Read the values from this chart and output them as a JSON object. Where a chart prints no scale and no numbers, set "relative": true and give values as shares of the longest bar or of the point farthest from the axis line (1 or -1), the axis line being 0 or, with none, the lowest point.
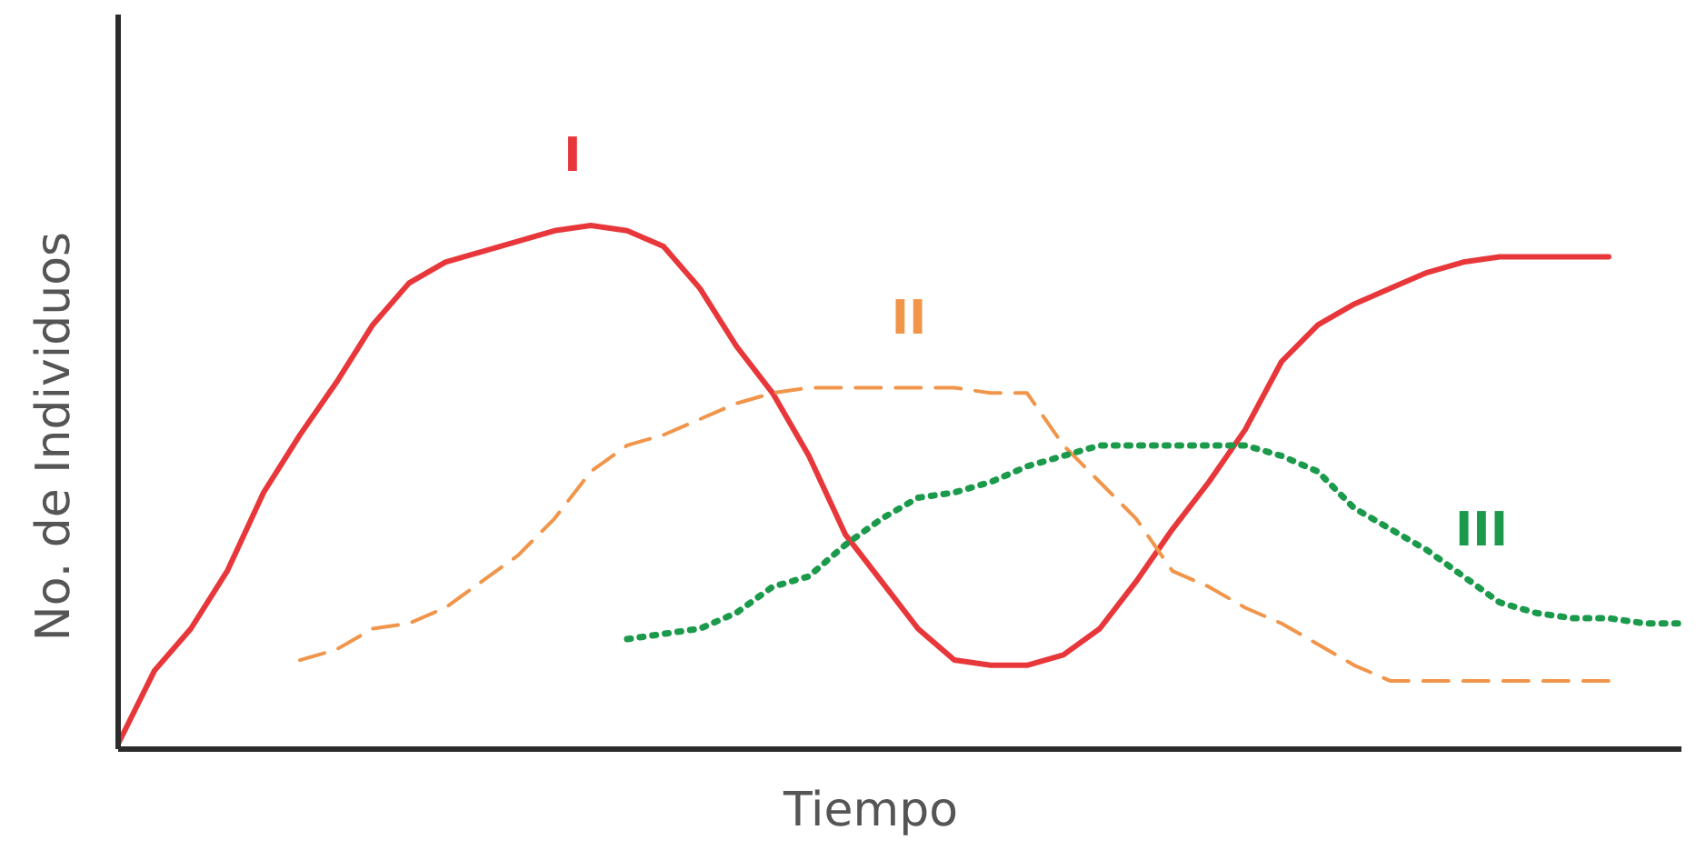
{
  "chart_data": {
    "type": "line",
    "relative": true,
    "xlabel": "Tiempo",
    "ylabel": "No. de Individuos",
    "legend": false,
    "marker": "none",
    "categories": [
      null,
      null,
      null,
      null,
      null,
      null,
      null,
      null,
      null,
      null,
      null,
      null,
      null,
      null,
      null,
      null,
      null,
      null,
      null,
      null,
      null,
      null,
      null,
      null,
      null,
      null,
      null,
      null,
      null,
      null,
      null,
      null,
      null,
      null,
      null,
      null,
      null,
      null,
      null,
      null,
      null,
      null,
      null,
      null
    ],
    "series": [
      {
        "name": "I",
        "color": "#e8373a",
        "line_style": "solid",
        "values": [
          0.01,
          0.15,
          0.23,
          0.34,
          0.49,
          0.6,
          0.7,
          0.81,
          0.89,
          0.93,
          0.95,
          0.97,
          0.99,
          1,
          0.99,
          0.96,
          0.88,
          0.77,
          0.68,
          0.56,
          0.41,
          0.32,
          0.23,
          0.17,
          0.16,
          0.16,
          0.18,
          0.23,
          0.32,
          0.42,
          0.51,
          0.61,
          0.74,
          0.81,
          0.85,
          0.88,
          0.91,
          0.93,
          0.94,
          0.94,
          0.94,
          0.94,
          null,
          null
        ]
      },
      {
        "name": "II",
        "color": "#f0954a",
        "line_style": "dashed",
        "values": [
          null,
          null,
          null,
          null,
          null,
          0.17,
          0.19,
          0.23,
          0.24,
          0.27,
          0.32,
          0.37,
          0.44,
          0.53,
          0.58,
          0.6,
          0.63,
          0.66,
          0.68,
          0.69,
          0.69,
          0.69,
          0.69,
          0.69,
          0.68,
          0.68,
          0.58,
          0.51,
          0.44,
          0.34,
          0.31,
          0.27,
          0.24,
          0.2,
          0.16,
          0.13,
          0.13,
          0.13,
          0.13,
          0.13,
          0.13,
          0.13,
          null,
          null
        ]
      },
      {
        "name": "III",
        "color": "#1a9a4a",
        "line_style": "dotted",
        "values": [
          null,
          null,
          null,
          null,
          null,
          null,
          null,
          null,
          null,
          null,
          null,
          null,
          null,
          null,
          0.21,
          0.22,
          0.23,
          0.26,
          0.31,
          0.33,
          0.39,
          0.44,
          0.48,
          0.49,
          0.51,
          0.54,
          0.56,
          0.58,
          0.58,
          0.58,
          0.58,
          0.58,
          0.56,
          0.53,
          0.46,
          0.42,
          0.38,
          0.33,
          0.28,
          0.26,
          0.25,
          0.25,
          0.24,
          0.24
        ]
      }
    ]
  }
}
